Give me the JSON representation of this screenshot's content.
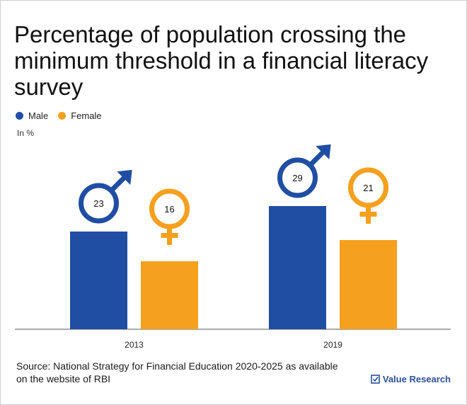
{
  "title": "Percentage of population crossing the minimum threshold in a financial literacy survey",
  "unit_label": "In %",
  "source": "Source: National Strategy for Financial Education 2020-2025 as available on the website of RBI",
  "brand": "Value Research",
  "colors": {
    "male": "#1f4ea3",
    "female": "#f5a01e",
    "axis": "#555555"
  },
  "chart_data": {
    "type": "bar",
    "categories": [
      "2013",
      "2019"
    ],
    "series": [
      {
        "name": "Male",
        "values": [
          23,
          29
        ],
        "icon": "male-symbol-icon"
      },
      {
        "name": "Female",
        "values": [
          16,
          21
        ],
        "icon": "female-symbol-icon"
      }
    ],
    "ylabel": "In %",
    "grid": false,
    "legend": "top-left"
  }
}
